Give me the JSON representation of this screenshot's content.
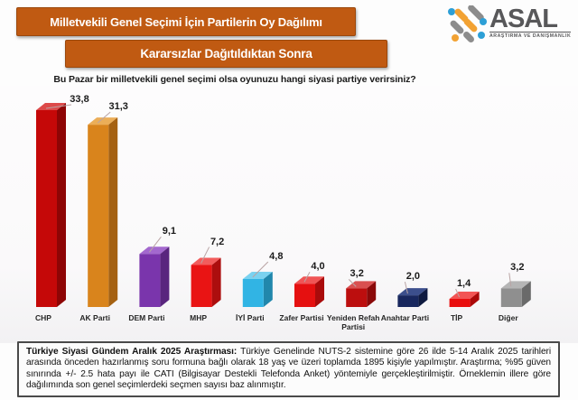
{
  "header": {
    "title_banner": "Milletvekili Genel Seçimi İçin Partilerin Oy Dağılımı",
    "subtitle_banner": "Kararsızlar Dağıtıldıktan Sonra",
    "banner_color": "#c05a12"
  },
  "logo": {
    "name": "ASAL",
    "tagline": "ARAŞTIRMA VE DANIŞMANLIK",
    "colors": {
      "blue": "#2d9fd6",
      "orange": "#f2a233",
      "gray": "#8c8c8c",
      "text": "#58585a"
    }
  },
  "question": "Bu Pazar bir milletvekili genel seçimi olsa oyunuzu hangi siyasi partiye verirsiniz?",
  "unit_label": "%",
  "chart_data": {
    "type": "bar",
    "style": "3d-column",
    "title": "Milletvekili Genel Seçimi İçin Partilerin Oy Dağılımı - Kararsızlar Dağıtıldıktan Sonra",
    "xlabel": "",
    "ylabel": "%",
    "ylim": [
      0,
      35
    ],
    "grid": false,
    "legend": false,
    "decimal_separator": ",",
    "categories": [
      "CHP",
      "AK Parti",
      "DEM Parti",
      "MHP",
      "İYİ Parti",
      "Zafer Partisi",
      "Yeniden Refah Partisi",
      "Anahtar Parti",
      "TİP",
      "Diğer"
    ],
    "values": [
      33.8,
      31.3,
      9.1,
      7.2,
      4.8,
      4.0,
      3.2,
      2.0,
      1.4,
      3.2
    ],
    "bar_colors": [
      {
        "front": "#c50808",
        "side": "#8e0505",
        "top": "#dd4a4a"
      },
      {
        "front": "#d9841c",
        "side": "#a56112",
        "top": "#ebae58"
      },
      {
        "front": "#7a35ac",
        "side": "#59257e",
        "top": "#a368ce"
      },
      {
        "front": "#e91414",
        "side": "#ac0e0e",
        "top": "#f25c5c"
      },
      {
        "front": "#31b4e4",
        "side": "#2187ac",
        "top": "#7bd2f0"
      },
      {
        "front": "#e51010",
        "side": "#a90b0b",
        "top": "#f05555"
      },
      {
        "front": "#bc0e0e",
        "side": "#8a0909",
        "top": "#d95050"
      },
      {
        "front": "#18275e",
        "side": "#0f1a40",
        "top": "#3c4f8c"
      },
      {
        "front": "#e90e0e",
        "side": "#ab0909",
        "top": "#f25454"
      },
      {
        "front": "#8f8f8f",
        "side": "#6a6a6a",
        "top": "#b5b5b5"
      }
    ],
    "leader_line_color": "#b9a4a4"
  },
  "footnote": {
    "bold_prefix": "Türkiye Siyasi Gündem Aralık 2025 Araştırması:",
    "text": " Türkiye Genelinde NUTS-2 sistemine göre 26 ilde 5-14 Aralık 2025 tarihleri arasında önceden hazırlanmış soru formuna bağlı olarak 18 yaş ve üzeri toplamda 1895 kişiyle yapılmıştır. Araştırma; %95 güven sınırında +/- 2.5 hata payı ile CATI (Bilgisayar Destekli Telefonda Anket) yöntemiyle gerçekleştirilmiştir. Örneklemin illere göre dağılımında son genel seçimlerdeki seçmen sayısı baz alınmıştır."
  }
}
